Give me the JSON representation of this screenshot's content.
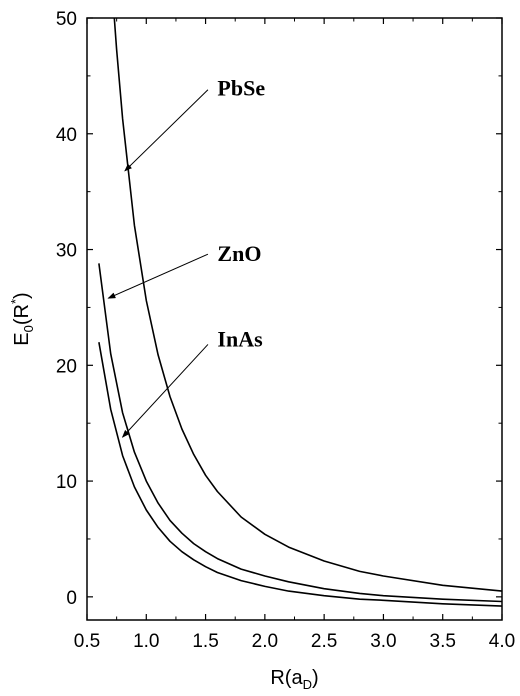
{
  "chart_data": {
    "type": "line",
    "xlim": [
      0.5,
      4.0
    ],
    "ylim": [
      -2,
      50
    ],
    "xticks": [
      "0.5",
      "1.0",
      "1.5",
      "2.0",
      "2.5",
      "3.0",
      "3.5",
      "4.0"
    ],
    "yticks": [
      "0",
      "10",
      "20",
      "30",
      "40",
      "50"
    ],
    "xlabel": {
      "main": "R(a",
      "sub": "D",
      "close": ")"
    },
    "ylabel": {
      "main": "E",
      "sub": "0",
      "open": "(R",
      "sup": "*",
      "close": ")"
    },
    "grid": false,
    "series": [
      {
        "name": "PbSe",
        "points": [
          [
            0.73,
            50
          ],
          [
            0.75,
            47.3
          ],
          [
            0.8,
            41.3
          ],
          [
            0.9,
            32.1
          ],
          [
            1.0,
            25.6
          ],
          [
            1.1,
            20.9
          ],
          [
            1.2,
            17.3
          ],
          [
            1.3,
            14.5
          ],
          [
            1.4,
            12.3
          ],
          [
            1.5,
            10.5
          ],
          [
            1.6,
            9.1
          ],
          [
            1.8,
            6.9
          ],
          [
            2.0,
            5.4
          ],
          [
            2.2,
            4.3
          ],
          [
            2.5,
            3.1
          ],
          [
            2.8,
            2.2
          ],
          [
            3.0,
            1.8
          ],
          [
            3.5,
            1.0
          ],
          [
            4.0,
            0.5
          ]
        ]
      },
      {
        "name": "ZnO",
        "points": [
          [
            0.6,
            28.8
          ],
          [
            0.7,
            21.0
          ],
          [
            0.8,
            15.9
          ],
          [
            0.9,
            12.5
          ],
          [
            1.0,
            10.0
          ],
          [
            1.1,
            8.1
          ],
          [
            1.2,
            6.6
          ],
          [
            1.3,
            5.5
          ],
          [
            1.4,
            4.6
          ],
          [
            1.5,
            3.9
          ],
          [
            1.6,
            3.3
          ],
          [
            1.8,
            2.4
          ],
          [
            2.0,
            1.8
          ],
          [
            2.2,
            1.3
          ],
          [
            2.5,
            0.7
          ],
          [
            2.8,
            0.3
          ],
          [
            3.0,
            0.1
          ],
          [
            3.5,
            -0.2
          ],
          [
            4.0,
            -0.4
          ]
        ]
      },
      {
        "name": "InAs",
        "points": [
          [
            0.6,
            22.0
          ],
          [
            0.7,
            16.2
          ],
          [
            0.8,
            12.2
          ],
          [
            0.9,
            9.5
          ],
          [
            1.0,
            7.5
          ],
          [
            1.1,
            6.0
          ],
          [
            1.2,
            4.8
          ],
          [
            1.3,
            3.9
          ],
          [
            1.4,
            3.2
          ],
          [
            1.5,
            2.6
          ],
          [
            1.6,
            2.1
          ],
          [
            1.8,
            1.4
          ],
          [
            2.0,
            0.9
          ],
          [
            2.2,
            0.5
          ],
          [
            2.5,
            0.1
          ],
          [
            2.8,
            -0.2
          ],
          [
            3.0,
            -0.3
          ],
          [
            3.5,
            -0.6
          ],
          [
            4.0,
            -0.8
          ]
        ]
      }
    ],
    "annotations": [
      {
        "text": "PbSe",
        "text_at": [
          1.6,
          44.0
        ],
        "arrow_from": [
          1.52,
          43.8
        ],
        "arrow_to": [
          0.82,
          36.8
        ]
      },
      {
        "text": "ZnO",
        "text_at": [
          1.6,
          29.7
        ],
        "arrow_from": [
          1.52,
          29.6
        ],
        "arrow_to": [
          0.68,
          25.8
        ]
      },
      {
        "text": "InAs",
        "text_at": [
          1.6,
          22.3
        ],
        "arrow_from": [
          1.52,
          21.8
        ],
        "arrow_to": [
          0.8,
          13.8
        ]
      }
    ]
  }
}
